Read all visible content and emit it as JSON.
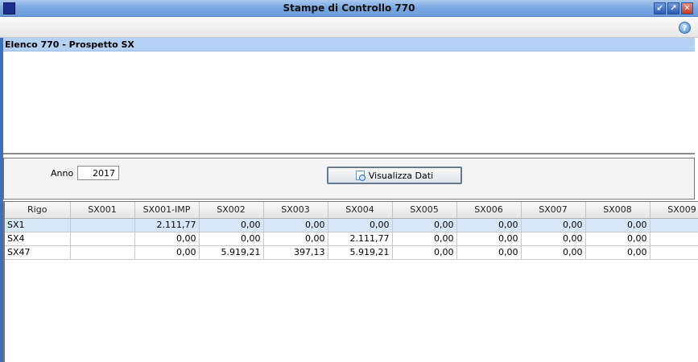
{
  "window": {
    "title": "Stampe di Controllo 770",
    "buttons": [
      "minimize",
      "maximize",
      "close"
    ]
  },
  "toolbar": {
    "help_icon": "help-icon"
  },
  "section": {
    "title": "Elenco 770 - Prospetto SX"
  },
  "filter": {
    "anno_label": "Anno",
    "anno_value": "2017",
    "button_label": "Visualizza Dati"
  },
  "table": {
    "columns": [
      "Rigo",
      "SX001",
      "SX001-IMP",
      "SX002",
      "SX003",
      "SX004",
      "SX005",
      "SX006",
      "SX007",
      "SX008",
      "SX009"
    ],
    "rows": [
      [
        "SX1",
        "",
        "2.111,77",
        "0,00",
        "0,00",
        "0,00",
        "0,00",
        "0,00",
        "0,00",
        "0,00",
        ""
      ],
      [
        "SX4",
        "",
        "0,00",
        "0,00",
        "0,00",
        "2.111,77",
        "0,00",
        "0,00",
        "0,00",
        "0,00",
        ""
      ],
      [
        "SX47",
        "",
        "0,00",
        "5.919,21",
        "397,13",
        "5.919,21",
        "0,00",
        "0,00",
        "0,00",
        "0,00",
        ""
      ]
    ],
    "selected_row": 0
  }
}
